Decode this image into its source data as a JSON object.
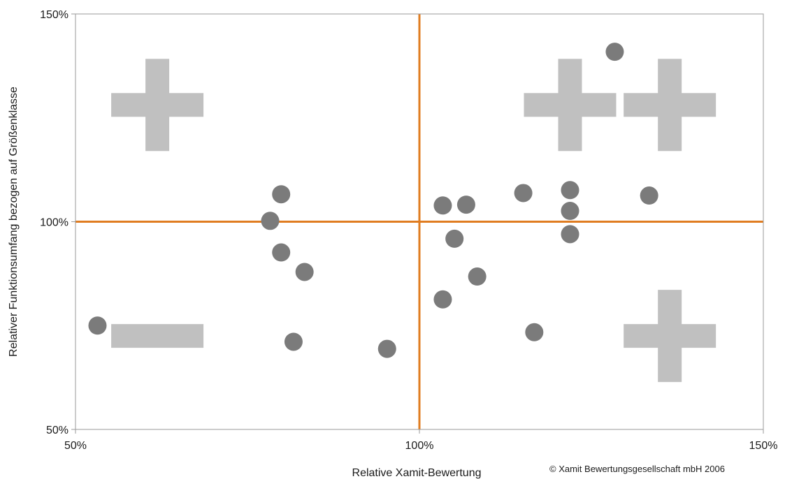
{
  "chart_data": {
    "type": "scatter",
    "title": "",
    "xlabel": "Relative Xamit-Bewertung",
    "ylabel": "Relativer Funktionsumfang bezogen auf Größenklasse",
    "xlim": [
      50,
      150
    ],
    "ylim": [
      50,
      150
    ],
    "x_ticks": [
      "50%",
      "100%",
      "150%"
    ],
    "y_ticks": [
      "50%",
      "100%",
      "150%"
    ],
    "grid": false,
    "reference_lines": {
      "x": 100,
      "y": 100
    },
    "points": [
      {
        "x": 53.2,
        "y": 75.0
      },
      {
        "x": 78.3,
        "y": 100.2
      },
      {
        "x": 79.9,
        "y": 106.6
      },
      {
        "x": 79.9,
        "y": 92.6
      },
      {
        "x": 83.3,
        "y": 87.9
      },
      {
        "x": 81.7,
        "y": 71.1
      },
      {
        "x": 95.3,
        "y": 69.4
      },
      {
        "x": 103.4,
        "y": 103.9
      },
      {
        "x": 106.8,
        "y": 104.1
      },
      {
        "x": 105.1,
        "y": 95.9
      },
      {
        "x": 108.4,
        "y": 86.8
      },
      {
        "x": 103.4,
        "y": 81.3
      },
      {
        "x": 115.1,
        "y": 106.9
      },
      {
        "x": 116.7,
        "y": 73.4
      },
      {
        "x": 121.9,
        "y": 107.6
      },
      {
        "x": 121.9,
        "y": 102.6
      },
      {
        "x": 121.9,
        "y": 97.0
      },
      {
        "x": 128.4,
        "y": 140.9
      },
      {
        "x": 133.4,
        "y": 106.3
      }
    ],
    "symbols": [
      {
        "type": "plus",
        "cx": 61.9,
        "cy": 128.1
      },
      {
        "type": "minus",
        "cx": 61.9,
        "cy": 72.5
      },
      {
        "type": "plus",
        "cx": 121.9,
        "cy": 128.1
      },
      {
        "type": "plus",
        "cx": 136.4,
        "cy": 128.1
      },
      {
        "type": "plus",
        "cx": 136.4,
        "cy": 72.5
      }
    ],
    "colors": {
      "point": "#7b7b7b",
      "symbol": "#c0c0c0",
      "reference_line": "#e07c20",
      "frame": "#9a9a9a"
    }
  },
  "footer": {
    "copyright": "© Xamit Bewertungsgesellschaft mbH 2006"
  }
}
